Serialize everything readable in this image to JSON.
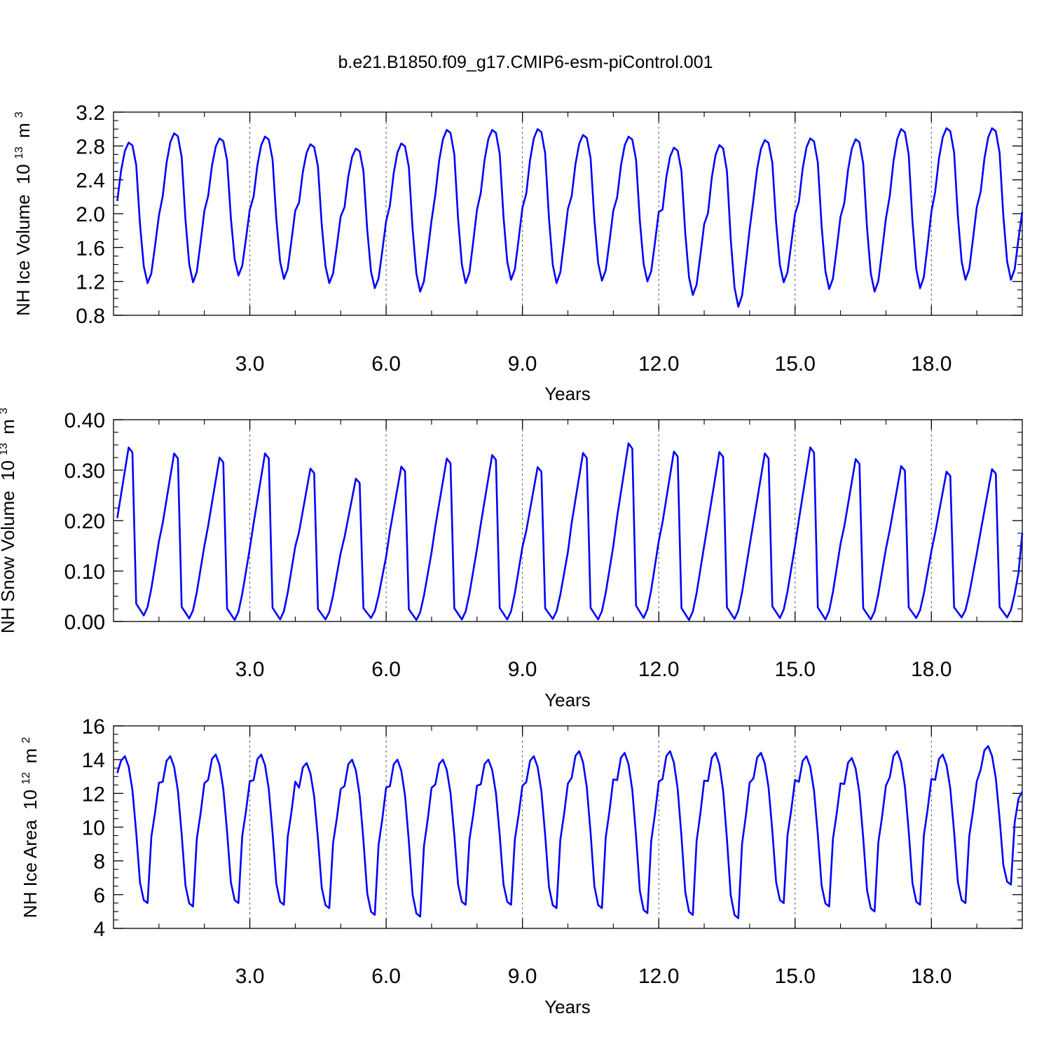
{
  "title": "b.e21.B1850.f09_g17.CMIP6-esm-piControl.001",
  "chart_data": [
    {
      "type": "line",
      "ylabel": "NH Ice Volume",
      "yunit": "10",
      "yexp": "13",
      "yunit2": "m",
      "yunit2_exp": "3",
      "xlabel": "Years",
      "xlim": [
        0.0,
        20.0
      ],
      "ylim": [
        0.8,
        3.2
      ],
      "xticks": [
        3.0,
        6.0,
        9.0,
        12.0,
        15.0,
        18.0
      ],
      "xtick_labels": [
        "3.0",
        "6.0",
        "9.0",
        "12.0",
        "15.0",
        "18.0"
      ],
      "yticks": [
        0.8,
        1.2,
        1.6,
        2.0,
        2.4,
        2.8,
        3.2
      ],
      "ytick_labels": [
        "0.8",
        "1.2",
        "1.6",
        "2.0",
        "2.4",
        "2.8",
        "3.2"
      ],
      "series_color": "#0000ff",
      "max_values": [
        2.84,
        2.95,
        2.89,
        2.91,
        2.82,
        2.77,
        2.83,
        2.99,
        2.99,
        3.0,
        2.93,
        2.91,
        2.78,
        2.81,
        2.87,
        2.89,
        2.88,
        3.0,
        3.01
      ],
      "min_values": [
        1.18,
        1.19,
        1.27,
        1.23,
        1.18,
        1.12,
        1.08,
        1.18,
        1.22,
        1.18,
        1.21,
        1.2,
        1.04,
        0.9,
        1.19,
        1.11,
        1.08,
        1.12,
        1.22
      ],
      "start_value": 2.15,
      "end_value": 2.02
    },
    {
      "type": "line",
      "ylabel": "NH Snow Volume",
      "yunit": "10",
      "yexp": "13",
      "yunit2": "m",
      "yunit2_exp": "3",
      "xlabel": "Years",
      "xlim": [
        0.0,
        20.0
      ],
      "ylim": [
        0.0,
        0.4
      ],
      "xticks": [
        3.0,
        6.0,
        9.0,
        12.0,
        15.0,
        18.0
      ],
      "xtick_labels": [
        "3.0",
        "6.0",
        "9.0",
        "12.0",
        "15.0",
        "18.0"
      ],
      "yticks": [
        0.0,
        0.1,
        0.2,
        0.3,
        0.4
      ],
      "ytick_labels": [
        "0.00",
        "0.10",
        "0.20",
        "0.30",
        "0.40"
      ],
      "series_color": "#0000ff",
      "max_values": [
        0.345,
        0.333,
        0.325,
        0.333,
        0.303,
        0.283,
        0.307,
        0.323,
        0.33,
        0.306,
        0.334,
        0.353,
        0.337,
        0.336,
        0.333,
        0.345,
        0.322,
        0.308,
        0.297,
        0.302
      ],
      "min_values": [
        0.012,
        0.006,
        0.003,
        0.004,
        0.004,
        0.007,
        0.003,
        0.004,
        0.004,
        0.005,
        0.004,
        0.007,
        0.003,
        0.005,
        0.007,
        0.004,
        0.004,
        0.007,
        0.008,
        0.008
      ],
      "start_value": 0.205,
      "end_value": 0.175
    },
    {
      "type": "line",
      "ylabel": "NH Ice Area",
      "yunit": "10",
      "yexp": "12",
      "yunit2": "m",
      "yunit2_exp": "2",
      "xlabel": "Years",
      "xlim": [
        0.0,
        20.0
      ],
      "ylim": [
        4,
        16
      ],
      "xticks": [
        3.0,
        6.0,
        9.0,
        12.0,
        15.0,
        18.0
      ],
      "xtick_labels": [
        "3.0",
        "6.0",
        "9.0",
        "12.0",
        "15.0",
        "18.0"
      ],
      "yticks": [
        4,
        6,
        8,
        10,
        12,
        14,
        16
      ],
      "ytick_labels": [
        "4",
        "6",
        "8",
        "10",
        "12",
        "14",
        "16"
      ],
      "series_color": "#0000ff",
      "max_values": [
        14.2,
        14.2,
        14.3,
        14.3,
        13.8,
        14.0,
        14.0,
        14.0,
        14.0,
        14.2,
        14.5,
        14.4,
        14.5,
        14.4,
        14.4,
        14.2,
        14.1,
        14.5,
        14.3,
        14.8
      ],
      "min_values": [
        5.5,
        5.3,
        5.5,
        5.4,
        5.2,
        4.8,
        4.7,
        5.4,
        5.4,
        5.2,
        5.2,
        4.9,
        4.8,
        4.6,
        5.5,
        5.3,
        5.0,
        5.4,
        5.5,
        6.6
      ],
      "start_value": 13.2,
      "end_value": 12.1
    }
  ]
}
